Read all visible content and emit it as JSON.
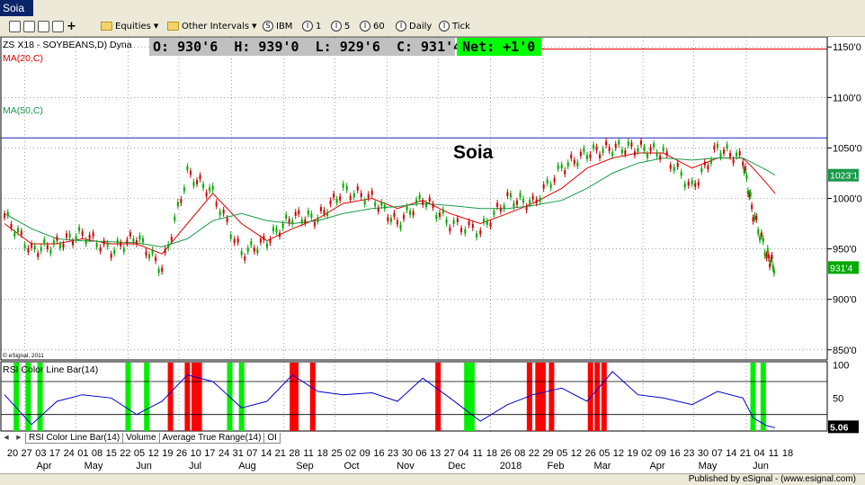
{
  "window": {
    "title": "Soia"
  },
  "toolbar": {
    "equities_label": "Equities",
    "intervals_label": "Other Intervals",
    "symbol_button": "IBM",
    "interval_buttons": [
      "1",
      "5",
      "60"
    ],
    "daily_label": "Daily",
    "tick_label": "Tick"
  },
  "quote": {
    "open": "O: 930'6",
    "high": "H: 939'0",
    "low": "L: 929'6",
    "close": "C: 931'4",
    "net": "Net: +1'0"
  },
  "chart_data": [
    {
      "type": "line",
      "title": "ZS X18 - SOYBEANS,D) Dyna",
      "annotation": "Soia",
      "copyright": "© eSignal, 2011",
      "y_axis": {
        "ticks": [
          "1150'0",
          "1100'0",
          "1050'0",
          "1000'0",
          "950'0",
          "900'0",
          "850'0"
        ],
        "values": [
          1150,
          1100,
          1050,
          1000,
          950,
          900,
          850
        ],
        "ylim": [
          840,
          1160
        ]
      },
      "horizontal_line": 1060,
      "last_price_label": "931'4",
      "ma50_label_value": "1023'1",
      "grid": true,
      "x_dates": [
        "2017-03-20",
        "2017-04-05",
        "2017-04-20",
        "2017-05-05",
        "2017-05-22",
        "2017-06-06",
        "2017-06-21",
        "2017-07-06",
        "2017-07-21",
        "2017-08-07",
        "2017-08-22",
        "2017-09-06",
        "2017-09-21",
        "2017-10-06",
        "2017-10-23",
        "2017-11-07",
        "2017-11-22",
        "2017-12-08",
        "2017-12-26",
        "2018-01-11",
        "2018-01-26",
        "2018-02-12",
        "2018-02-27",
        "2018-03-14",
        "2018-03-29",
        "2018-04-13",
        "2018-04-30",
        "2018-05-15",
        "2018-05-30",
        "2018-06-05",
        "2018-06-13",
        "2018-06-18"
      ],
      "series": [
        {
          "name": "ZS X18",
          "color": "#00aa00",
          "values": [
            983,
            948,
            955,
            965,
            948,
            962,
            930,
            1025,
            1005,
            945,
            958,
            982,
            980,
            1008,
            1000,
            975,
            1000,
            975,
            968,
            1000,
            995,
            1030,
            1045,
            1050,
            1050,
            1045,
            1010,
            1050,
            1038,
            985,
            945,
            931
          ]
        },
        {
          "name": "MA(20,C)",
          "color": "#e00000",
          "values": [
            975,
            955,
            955,
            960,
            955,
            955,
            945,
            975,
            1005,
            975,
            958,
            970,
            980,
            995,
            1000,
            990,
            998,
            985,
            975,
            985,
            995,
            1010,
            1030,
            1040,
            1045,
            1045,
            1030,
            1040,
            1040,
            1030,
            1015,
            1005
          ]
        },
        {
          "name": "MA(50,C)",
          "color": "#1a9a4a",
          "values": [
            985,
            970,
            960,
            958,
            957,
            956,
            952,
            960,
            978,
            985,
            978,
            975,
            978,
            985,
            990,
            992,
            995,
            993,
            990,
            990,
            993,
            998,
            1010,
            1025,
            1035,
            1040,
            1038,
            1040,
            1040,
            1035,
            1028,
            1023
          ]
        }
      ]
    },
    {
      "type": "line",
      "title": "RSI Color Line Bar(14)",
      "y_axis": {
        "ticks": [
          "100",
          "50"
        ],
        "values": [
          100,
          50
        ],
        "ylim": [
          0,
          105
        ]
      },
      "reference_lines": [
        75,
        25
      ],
      "last_value_label": "5.06",
      "overbought_color": "#ff0000",
      "oversold_color": "#00ee00",
      "x_dates": [
        "2017-03-20",
        "2017-04-05",
        "2017-04-20",
        "2017-05-05",
        "2017-05-22",
        "2017-06-06",
        "2017-06-21",
        "2017-07-06",
        "2017-07-21",
        "2017-08-07",
        "2017-08-22",
        "2017-09-06",
        "2017-09-21",
        "2017-10-06",
        "2017-10-23",
        "2017-11-07",
        "2017-11-22",
        "2017-12-08",
        "2017-12-26",
        "2018-01-11",
        "2018-01-26",
        "2018-02-12",
        "2018-02-27",
        "2018-03-14",
        "2018-03-29",
        "2018-04-13",
        "2018-04-30",
        "2018-05-15",
        "2018-05-30",
        "2018-06-05",
        "2018-06-13",
        "2018-06-18"
      ],
      "series": [
        {
          "name": "RSI(14)",
          "color": "#0000cc",
          "values": [
            55,
            10,
            45,
            55,
            50,
            25,
            45,
            85,
            75,
            35,
            45,
            85,
            60,
            55,
            58,
            45,
            80,
            50,
            15,
            40,
            55,
            65,
            45,
            90,
            55,
            50,
            40,
            60,
            50,
            20,
            8,
            5
          ]
        }
      ],
      "overbought_dates": [
        "2017-06-26",
        "2017-07-06",
        "2017-07-10",
        "2017-07-13",
        "2017-09-06",
        "2017-09-08",
        "2017-09-18",
        "2017-12-01",
        "2018-01-24",
        "2018-01-29",
        "2018-02-01",
        "2018-02-06",
        "2018-03-01",
        "2018-03-05",
        "2018-03-09"
      ],
      "oversold_dates": [
        "2017-03-27",
        "2017-04-03",
        "2017-04-10",
        "2017-06-01",
        "2017-06-12",
        "2017-07-31",
        "2017-08-07",
        "2017-12-18",
        "2017-12-21",
        "2018-06-05",
        "2018-06-11"
      ]
    }
  ],
  "x_axis": {
    "day_labels": [
      "20",
      "27",
      "03",
      "17",
      "24",
      "01",
      "08",
      "15",
      "22",
      "05",
      "12",
      "19",
      "26",
      "10",
      "17",
      "24",
      "31",
      "07",
      "14",
      "21",
      "28",
      "11",
      "18",
      "25",
      "02",
      "09",
      "16",
      "23",
      "30",
      "06",
      "13",
      "27",
      "04",
      "11",
      "18",
      "26",
      "08",
      "22",
      "29",
      "05",
      "12",
      "26",
      "05",
      "12",
      "19",
      "02",
      "09",
      "16",
      "23",
      "30",
      "07",
      "14",
      "21",
      "04",
      "11",
      "18"
    ],
    "month_labels": [
      "Apr",
      "May",
      "Jun",
      "Jul",
      "Aug",
      "Sep",
      "Oct",
      "Nov",
      "Dec",
      "2018",
      "Feb",
      "Mar",
      "Apr",
      "May",
      "Jun"
    ]
  },
  "tabs": [
    "RSI Color Line Bar(14)",
    "Volume",
    "Average True Range(14)",
    "OI"
  ],
  "status": {
    "text": "Published by eSignal - (www.esignal.com)"
  }
}
